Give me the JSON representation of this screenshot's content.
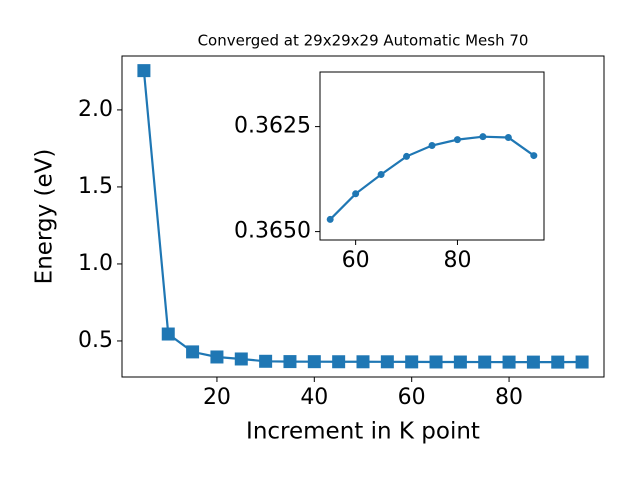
{
  "chart_data": [
    {
      "type": "line",
      "title": "Converged at 29x29x29 Automatic Mesh 70",
      "x_label": "Increment in K point",
      "y_label": "Energy (eV)",
      "x": [
        5,
        10,
        15,
        20,
        25,
        30,
        35,
        40,
        45,
        50,
        55,
        60,
        65,
        70,
        75,
        80,
        85,
        90,
        95
      ],
      "series": [
        {
          "color": "#1f77b4",
          "marker": "square",
          "values": [
            2.255,
            0.545,
            0.429,
            0.396,
            0.383,
            0.368,
            0.366,
            0.3655,
            0.365,
            0.3648,
            0.3647,
            0.3641,
            0.3636,
            0.3632,
            0.363,
            0.3628,
            0.3627,
            0.3628,
            0.3632
          ]
        }
      ],
      "xlim": [
        0.5,
        99.5
      ],
      "xticks": [
        20,
        40,
        60,
        80
      ],
      "ylim": [
        0.266,
        2.35
      ],
      "yticks": [
        0.5,
        {
          "value": 1.0,
          "label": "1.0"
        },
        1.5,
        {
          "value": 2.0,
          "label": "2.0"
        }
      ]
    },
    {
      "type": "line",
      "x": [
        55,
        60,
        65,
        70,
        75,
        80,
        85,
        90,
        95
      ],
      "series": [
        {
          "color": "#1f77b4",
          "marker": "circle",
          "values": [
            0.36471,
            0.3641,
            0.36364,
            0.36321,
            0.36295,
            0.36281,
            0.36274,
            0.36276,
            0.36319
          ]
        }
      ],
      "xlim": [
        53,
        97
      ],
      "xticks": [
        60,
        80
      ],
      "ylim": [
        0.3652,
        0.3612
      ],
      "yticks": [
        0.3625,
        {
          "value": 0.365,
          "label": "0.3650"
        }
      ]
    }
  ]
}
